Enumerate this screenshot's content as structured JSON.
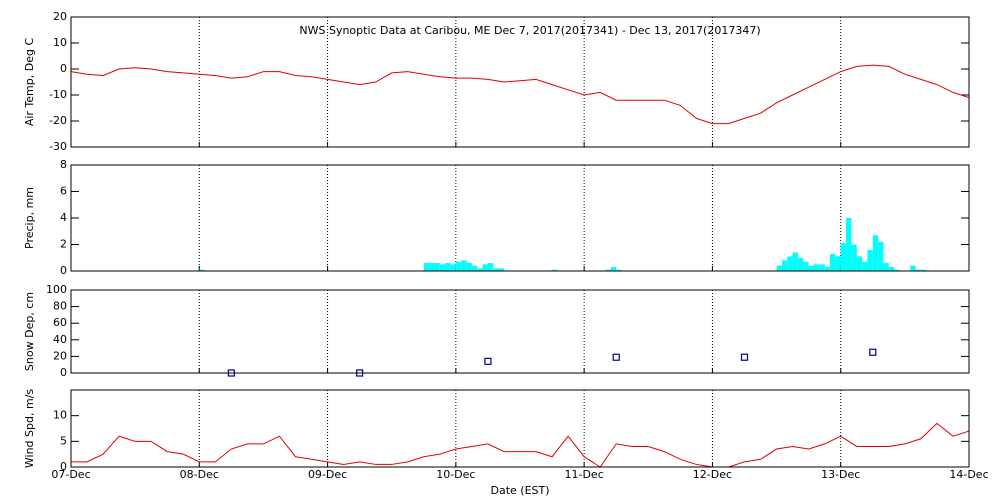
{
  "chart_data": [
    {
      "type": "line",
      "title": "NWS Synoptic Data at Caribou, ME   Dec  7, 2017(2017341) - Dec 13, 2017(2017347)",
      "ylabel": "Air Temp, Deg C",
      "color": "#e00000",
      "x": [
        0,
        3,
        6,
        9,
        12,
        15,
        18,
        21,
        24,
        27,
        30,
        33,
        36,
        39,
        42,
        45,
        48,
        51,
        54,
        57,
        60,
        63,
        66,
        69,
        72,
        75,
        78,
        81,
        84,
        87,
        90,
        93,
        96,
        99,
        102,
        105,
        108,
        111,
        114,
        117,
        120,
        123,
        126,
        129,
        132,
        135,
        138,
        141,
        144,
        147,
        150,
        153,
        156,
        159,
        162,
        165,
        168
      ],
      "values": [
        -1,
        -2,
        -2.5,
        0,
        0.5,
        0,
        -1,
        -1.5,
        -2,
        -2.5,
        -3.5,
        -3,
        -1,
        -1,
        -2.5,
        -3,
        -4,
        -5,
        -6,
        -5,
        -1.5,
        -1,
        -2,
        -3,
        -3.5,
        -3.5,
        -4,
        -5,
        -4.5,
        -4,
        -6,
        -8,
        -10,
        -9,
        -12,
        -12,
        -12,
        -12,
        -14,
        -19,
        -21,
        -21,
        -19,
        -17,
        -13,
        -10,
        -7,
        -4,
        -1,
        1,
        1.5,
        1,
        -2,
        -4,
        -6,
        -9,
        -11
      ],
      "xlim": [
        0,
        168
      ],
      "xticks": [
        0,
        24,
        48,
        72,
        96,
        120,
        144,
        168
      ],
      "ylim": [
        -30,
        20
      ],
      "yticks": [
        -30,
        -20,
        -10,
        0,
        10,
        20
      ],
      "grid": true
    },
    {
      "type": "bar",
      "ylabel": "Precip, mm",
      "color": "#00ffff",
      "x": [
        24,
        66,
        67,
        68,
        69,
        70,
        71,
        72,
        73,
        74,
        75,
        76,
        77,
        78,
        79,
        80,
        90,
        100,
        101,
        102,
        132,
        133,
        134,
        135,
        136,
        137,
        138,
        139,
        140,
        141,
        142,
        143,
        144,
        145,
        146,
        147,
        148,
        149,
        150,
        151,
        152,
        153,
        154,
        157,
        158,
        159
      ],
      "values": [
        0.1,
        0.6,
        0.6,
        0.6,
        0.5,
        0.6,
        0.5,
        0.7,
        0.8,
        0.6,
        0.4,
        0.2,
        0.5,
        0.6,
        0.2,
        0.2,
        0.1,
        0.1,
        0.3,
        0.1,
        0.4,
        0.8,
        1.1,
        1.4,
        1.0,
        0.7,
        0.4,
        0.5,
        0.5,
        0.3,
        1.3,
        1.1,
        2.1,
        4.0,
        2.0,
        1.1,
        0.7,
        1.6,
        2.7,
        2.2,
        0.6,
        0.3,
        0.1,
        0.4,
        0.1,
        0.1
      ],
      "xlim": [
        0,
        168
      ],
      "xticks": [
        0,
        24,
        48,
        72,
        96,
        120,
        144,
        168
      ],
      "ylim": [
        0,
        8
      ],
      "yticks": [
        0,
        2,
        4,
        6,
        8
      ],
      "grid": true
    },
    {
      "type": "scatter",
      "ylabel": "Snow Dep, cm",
      "color": "#00008b",
      "x": [
        30,
        54,
        78,
        102,
        126,
        150
      ],
      "values": [
        0,
        0,
        14,
        19,
        19,
        25
      ],
      "xlim": [
        0,
        168
      ],
      "xticks": [
        0,
        24,
        48,
        72,
        96,
        120,
        144,
        168
      ],
      "ylim": [
        0,
        100
      ],
      "yticks": [
        0,
        20,
        40,
        60,
        80,
        100
      ],
      "grid": true
    },
    {
      "type": "line",
      "ylabel": "Wind Spd, m/s",
      "xlabel": "Date (EST)",
      "color": "#e00000",
      "x": [
        0,
        3,
        6,
        9,
        12,
        15,
        18,
        21,
        24,
        27,
        30,
        33,
        36,
        39,
        42,
        45,
        48,
        51,
        54,
        57,
        60,
        63,
        66,
        69,
        72,
        75,
        78,
        81,
        84,
        87,
        90,
        93,
        96,
        99,
        102,
        105,
        108,
        111,
        114,
        117,
        120,
        123,
        126,
        129,
        132,
        135,
        138,
        141,
        144,
        147,
        150,
        153,
        156,
        159,
        162,
        165,
        168
      ],
      "values": [
        1,
        1,
        2.5,
        6,
        5,
        5,
        3,
        2.5,
        1,
        1,
        3.5,
        4.5,
        4.5,
        6,
        2,
        1.5,
        1,
        0.5,
        1,
        0.5,
        0.5,
        1,
        2,
        2.5,
        3.5,
        4,
        4.5,
        3,
        3,
        3,
        2,
        6,
        2,
        0,
        4.5,
        4,
        4,
        3,
        1.5,
        0.5,
        0,
        0,
        1,
        1.5,
        3.5,
        4,
        3.5,
        4.5,
        6,
        4,
        4,
        4,
        4.5,
        5.5,
        8.5,
        6,
        7
      ],
      "xlim": [
        0,
        168
      ],
      "xticks": [
        {
          "value": 0,
          "label": "07-Dec"
        },
        {
          "value": 24,
          "label": "08-Dec"
        },
        {
          "value": 48,
          "label": "09-Dec"
        },
        {
          "value": 72,
          "label": "10-Dec"
        },
        {
          "value": 96,
          "label": "11-Dec"
        },
        {
          "value": 120,
          "label": "12-Dec"
        },
        {
          "value": 144,
          "label": "13-Dec"
        },
        {
          "value": 168,
          "label": "14-Dec"
        }
      ],
      "ylim": [
        0,
        15
      ],
      "yticks": [
        0,
        5,
        10
      ],
      "grid": true
    }
  ]
}
